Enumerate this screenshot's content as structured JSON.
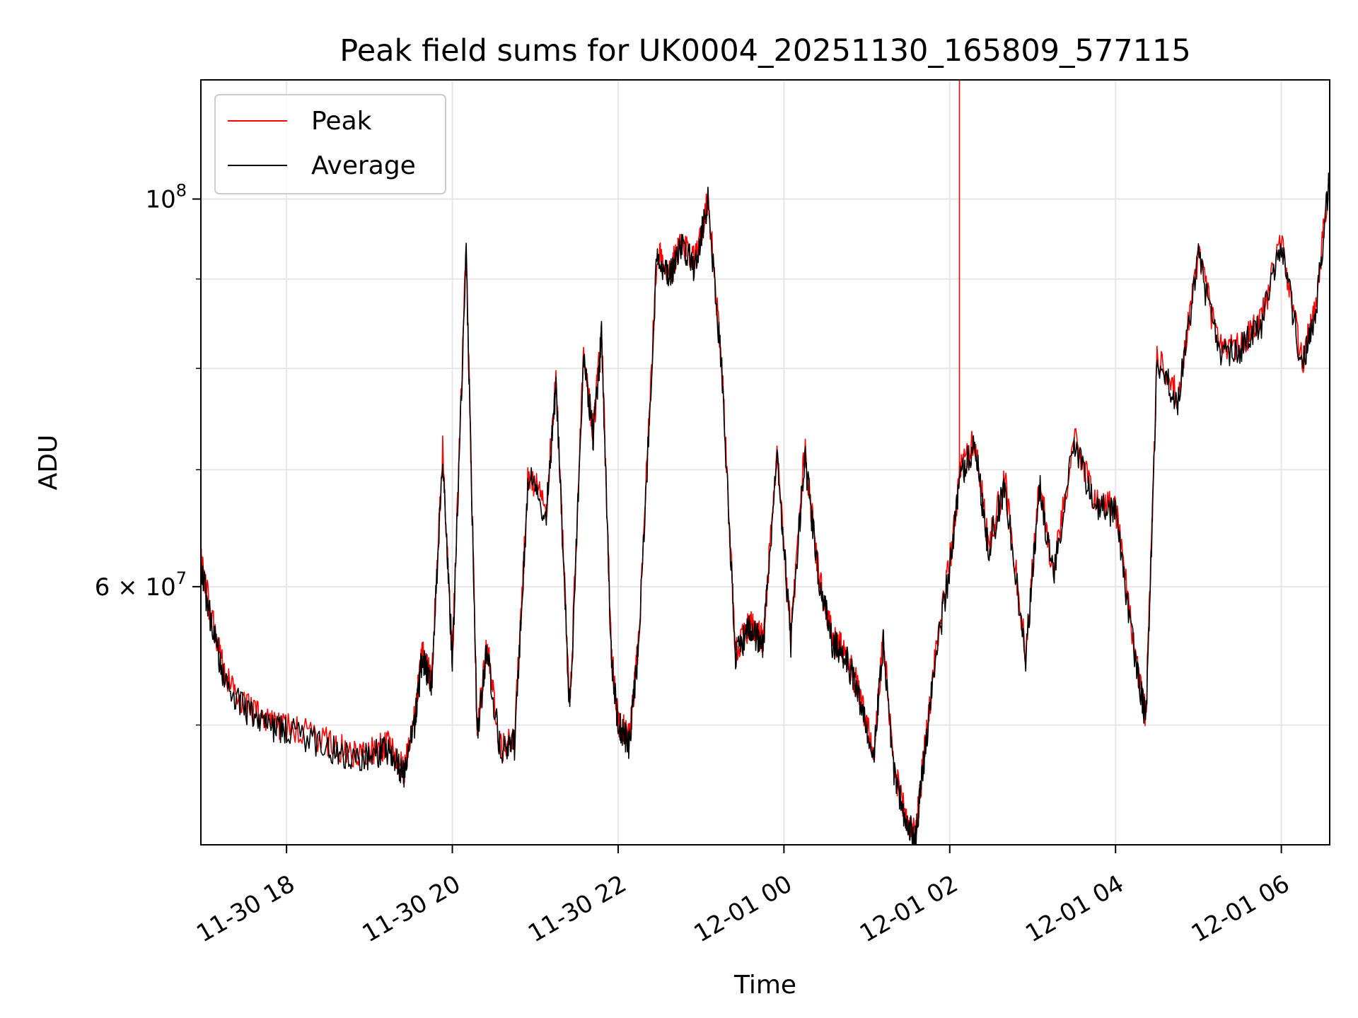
{
  "chart_data": {
    "type": "line",
    "title": "Peak field sums for UK0004_20251130_165809_577115",
    "xlabel": "Time",
    "ylabel": "ADU",
    "yscale": "log",
    "xlim": [
      "2025-11-30 16:58",
      "2025-12-01 06:35"
    ],
    "ylim": [
      42700000,
      117000000
    ],
    "grid": true,
    "legend_position": "top-left",
    "colors": {
      "Peak": "#ff0000",
      "Average": "#000000"
    },
    "x_ticks": [
      {
        "value": "2025-11-30 18:00",
        "label": "11-30 18"
      },
      {
        "value": "2025-11-30 20:00",
        "label": "11-30 20"
      },
      {
        "value": "2025-11-30 22:00",
        "label": "11-30 22"
      },
      {
        "value": "2025-12-01 00:00",
        "label": "12-01 00"
      },
      {
        "value": "2025-12-01 02:00",
        "label": "12-01 02"
      },
      {
        "value": "2025-12-01 04:00",
        "label": "12-01 04"
      },
      {
        "value": "2025-12-01 06:00",
        "label": "12-01 06"
      }
    ],
    "y_major_ticks": [
      {
        "value": 60000000,
        "mantissa": "6",
        "base": "10",
        "exponent": "7"
      },
      {
        "value": 100000000,
        "mantissa": "",
        "base": "10",
        "exponent": "8"
      }
    ],
    "y_minor_gridlines": [
      50000000,
      70000000,
      80000000,
      90000000
    ],
    "series": [
      {
        "name": "Peak",
        "x": [
          "2025-11-30 16:58",
          "2025-11-30 17:05",
          "2025-11-30 17:15",
          "2025-11-30 17:30",
          "2025-11-30 17:45",
          "2025-11-30 18:00",
          "2025-11-30 18:30",
          "2025-11-30 18:50",
          "2025-11-30 19:05",
          "2025-11-30 19:15",
          "2025-11-30 19:25",
          "2025-11-30 19:33",
          "2025-11-30 19:38",
          "2025-11-30 19:45",
          "2025-11-30 19:53",
          "2025-11-30 20:00",
          "2025-11-30 20:10",
          "2025-11-30 20:18",
          "2025-11-30 20:25",
          "2025-11-30 20:35",
          "2025-11-30 20:45",
          "2025-11-30 20:55",
          "2025-11-30 21:08",
          "2025-11-30 21:15",
          "2025-11-30 21:25",
          "2025-11-30 21:35",
          "2025-11-30 21:42",
          "2025-11-30 21:48",
          "2025-11-30 21:55",
          "2025-11-30 22:00",
          "2025-11-30 22:08",
          "2025-11-30 22:15",
          "2025-11-30 22:28",
          "2025-11-30 22:38",
          "2025-11-30 22:45",
          "2025-11-30 22:55",
          "2025-11-30 23:05",
          "2025-11-30 23:15",
          "2025-11-30 23:25",
          "2025-11-30 23:35",
          "2025-11-30 23:45",
          "2025-11-30 23:55",
          "2025-12-01 00:05",
          "2025-12-01 00:15",
          "2025-12-01 00:25",
          "2025-12-01 00:35",
          "2025-12-01 00:45",
          "2025-12-01 00:55",
          "2025-12-01 01:05",
          "2025-12-01 01:12",
          "2025-12-01 01:20",
          "2025-12-01 01:28",
          "2025-12-01 01:35",
          "2025-12-01 01:42",
          "2025-12-01 01:50",
          "2025-12-01 02:00",
          "2025-12-01 02:08",
          "2025-12-01 02:18",
          "2025-12-01 02:28",
          "2025-12-01 02:40",
          "2025-12-01 02:55",
          "2025-12-01 03:05",
          "2025-12-01 03:15",
          "2025-12-01 03:30",
          "2025-12-01 03:45",
          "2025-12-01 04:00",
          "2025-12-01 04:15",
          "2025-12-01 04:22",
          "2025-12-01 04:30",
          "2025-12-01 04:45",
          "2025-12-01 05:00",
          "2025-12-01 05:15",
          "2025-12-01 05:30",
          "2025-12-01 05:45",
          "2025-12-01 06:00",
          "2025-12-01 06:15",
          "2025-12-01 06:25",
          "2025-12-01 06:35"
        ],
        "y": [
          62000000,
          58000000,
          53500000,
          51300000,
          50400000,
          49900000,
          48900000,
          48200000,
          48500000,
          48800000,
          47200000,
          50500000,
          55000000,
          53000000,
          72000000,
          54500000,
          94000000,
          49500000,
          55500000,
          48500000,
          49000000,
          70000000,
          66500000,
          79000000,
          50800000,
          82000000,
          73500000,
          84000000,
          55000000,
          50300000,
          49000000,
          56000000,
          93000000,
          91000000,
          94500000,
          92000000,
          100000000,
          80500000,
          55000000,
          57000000,
          56000000,
          72000000,
          56000000,
          72000000,
          61000000,
          56000000,
          55000000,
          52000000,
          48500000,
          56000000,
          47000000,
          44500000,
          43200000,
          48500000,
          55000000,
          62000000,
          70000000,
          73000000,
          63500000,
          69000000,
          55000000,
          69000000,
          61000000,
          73000000,
          67000000,
          66500000,
          54500000,
          50500000,
          81000000,
          77000000,
          93000000,
          82000000,
          82500000,
          85000000,
          95000000,
          80500000,
          87000000,
          104000000
        ]
      },
      {
        "name": "Average",
        "x": [
          "2025-11-30 16:58",
          "2025-11-30 17:05",
          "2025-11-30 17:15",
          "2025-11-30 17:30",
          "2025-11-30 17:45",
          "2025-11-30 18:00",
          "2025-11-30 18:30",
          "2025-11-30 18:50",
          "2025-11-30 19:05",
          "2025-11-30 19:15",
          "2025-11-30 19:25",
          "2025-11-30 19:33",
          "2025-11-30 19:38",
          "2025-11-30 19:45",
          "2025-11-30 19:53",
          "2025-11-30 20:00",
          "2025-11-30 20:10",
          "2025-11-30 20:18",
          "2025-11-30 20:25",
          "2025-11-30 20:35",
          "2025-11-30 20:45",
          "2025-11-30 20:55",
          "2025-11-30 21:08",
          "2025-11-30 21:15",
          "2025-11-30 21:25",
          "2025-11-30 21:35",
          "2025-11-30 21:42",
          "2025-11-30 21:48",
          "2025-11-30 21:55",
          "2025-11-30 22:00",
          "2025-11-30 22:08",
          "2025-11-30 22:15",
          "2025-11-30 22:28",
          "2025-11-30 22:38",
          "2025-11-30 22:45",
          "2025-11-30 22:55",
          "2025-11-30 23:05",
          "2025-11-30 23:15",
          "2025-11-30 23:25",
          "2025-11-30 23:35",
          "2025-11-30 23:45",
          "2025-11-30 23:55",
          "2025-12-01 00:05",
          "2025-12-01 00:15",
          "2025-12-01 00:25",
          "2025-12-01 00:35",
          "2025-12-01 00:45",
          "2025-12-01 00:55",
          "2025-12-01 01:05",
          "2025-12-01 01:12",
          "2025-12-01 01:20",
          "2025-12-01 01:28",
          "2025-12-01 01:35",
          "2025-12-01 01:42",
          "2025-12-01 01:50",
          "2025-12-01 02:00",
          "2025-12-01 02:08",
          "2025-12-01 02:18",
          "2025-12-01 02:28",
          "2025-12-01 02:40",
          "2025-12-01 02:55",
          "2025-12-01 03:05",
          "2025-12-01 03:15",
          "2025-12-01 03:30",
          "2025-12-01 03:45",
          "2025-12-01 04:00",
          "2025-12-01 04:15",
          "2025-12-01 04:22",
          "2025-12-01 04:30",
          "2025-12-01 04:45",
          "2025-12-01 05:00",
          "2025-12-01 05:15",
          "2025-12-01 05:30",
          "2025-12-01 05:45",
          "2025-12-01 06:00",
          "2025-12-01 06:15",
          "2025-12-01 06:25",
          "2025-12-01 06:35"
        ],
        "y": [
          61500000,
          57500000,
          53000000,
          51000000,
          50100000,
          49600000,
          48600000,
          47900000,
          48200000,
          48500000,
          46900000,
          50200000,
          54700000,
          52700000,
          71500000,
          54200000,
          93500000,
          49200000,
          55200000,
          48200000,
          48700000,
          69500000,
          66000000,
          78500000,
          50500000,
          81500000,
          73000000,
          83500000,
          54700000,
          50000000,
          48700000,
          55700000,
          92500000,
          90500000,
          94000000,
          91500000,
          99500000,
          80000000,
          54700000,
          56700000,
          55700000,
          71500000,
          55700000,
          71500000,
          60700000,
          55700000,
          54700000,
          51700000,
          48200000,
          55700000,
          46700000,
          44200000,
          43000000,
          48200000,
          54700000,
          61500000,
          69500000,
          72500000,
          63000000,
          68500000,
          54700000,
          68500000,
          60700000,
          72500000,
          66500000,
          66000000,
          54200000,
          50200000,
          80500000,
          76500000,
          92500000,
          81500000,
          82000000,
          84500000,
          94500000,
          80000000,
          86500000,
          103500000
        ]
      }
    ],
    "annotations": [
      {
        "type": "vertical_spike",
        "series": "Peak",
        "x": "2025-12-01 02:07",
        "y_from": 70000000,
        "y_to": "above ylim"
      }
    ]
  }
}
